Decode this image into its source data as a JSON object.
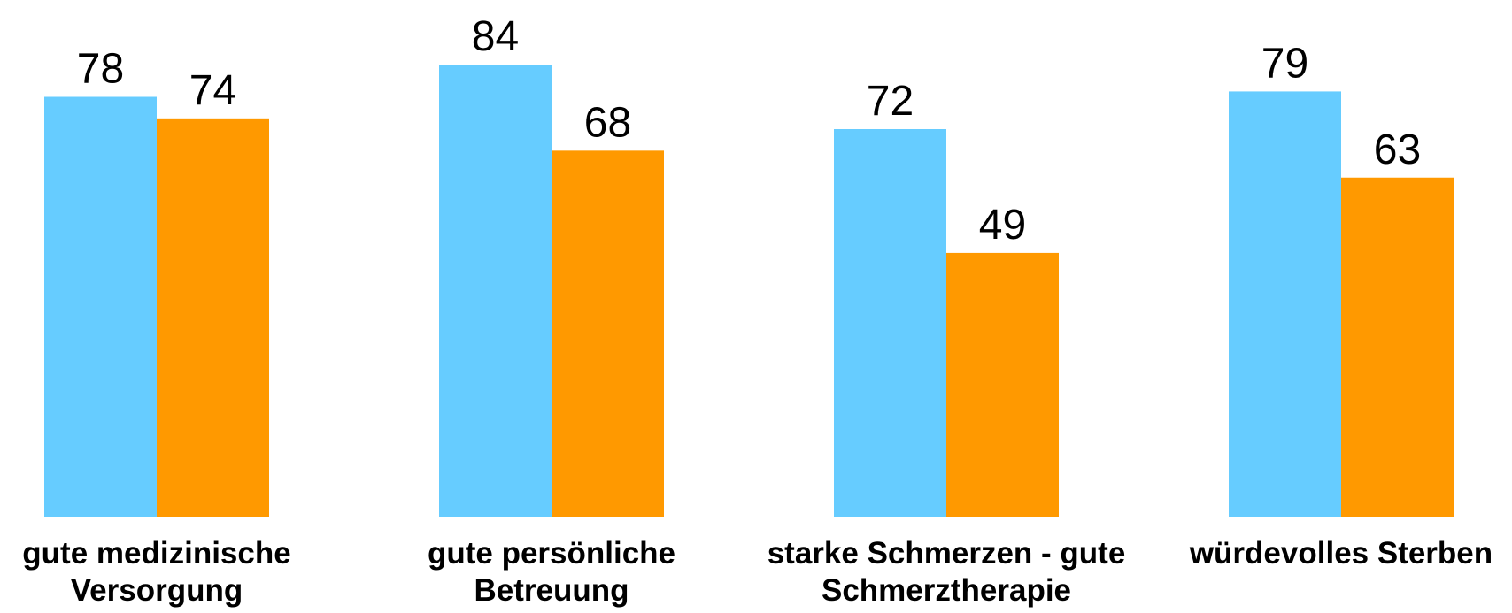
{
  "chart_data": {
    "type": "bar",
    "categories": [
      "gute medizinische Versorgung",
      "gute persönliche Betreuung",
      "starke Schmerzen - gute Schmerztherapie",
      "würdevolles Sterben"
    ],
    "series": [
      {
        "color": "#66ccff",
        "values": [
          78,
          84,
          72,
          79
        ]
      },
      {
        "color": "#ff9900",
        "values": [
          74,
          68,
          49,
          63
        ]
      }
    ],
    "ylim": [
      0,
      96
    ]
  }
}
